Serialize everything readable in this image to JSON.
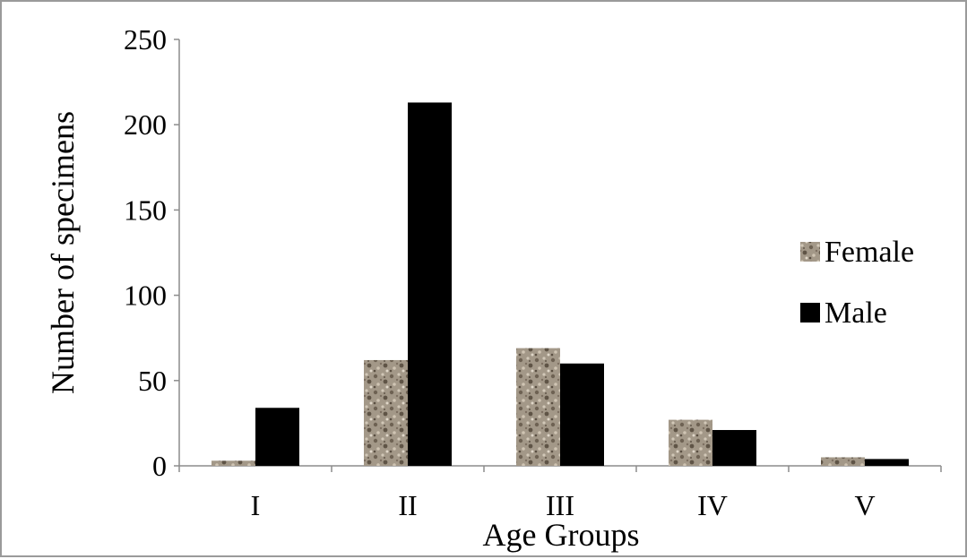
{
  "chart_data": {
    "type": "bar",
    "categories": [
      "I",
      "II",
      "III",
      "IV",
      "V"
    ],
    "series": [
      {
        "name": "Female",
        "values": [
          3,
          62,
          69,
          27,
          5
        ],
        "fill": "texture-granite"
      },
      {
        "name": "Male",
        "values": [
          34,
          213,
          60,
          21,
          4
        ],
        "fill": "#000000"
      }
    ],
    "xlabel": "Age Groups",
    "ylabel": "Number of specimens",
    "ylim": [
      0,
      250
    ],
    "yticks": [
      "0",
      "50",
      "100",
      "150",
      "200",
      "250"
    ],
    "grid": false,
    "legend_position": "right",
    "colors": {
      "female_base": "#a39888",
      "female_dark": "#6e6253",
      "female_light": "#d2c8b8",
      "male": "#000000",
      "axis": "#8c8c8c"
    }
  }
}
